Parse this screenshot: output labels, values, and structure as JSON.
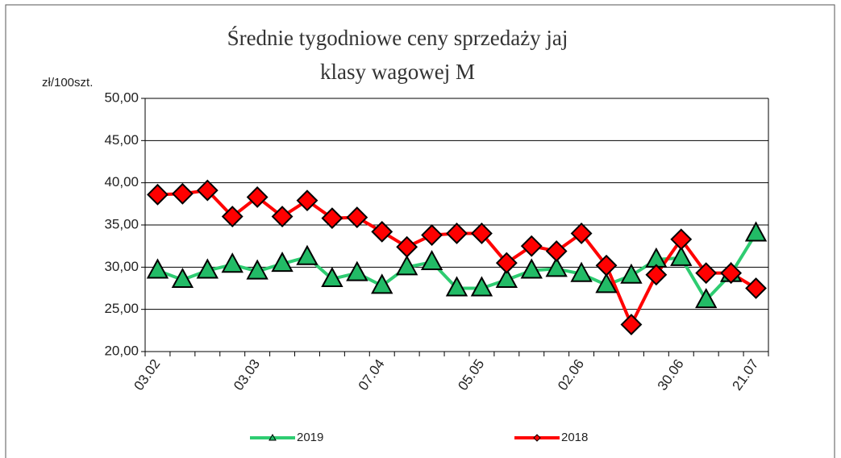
{
  "chart_data": {
    "type": "line",
    "title": [
      "Średnie tygodniowe ceny sprzedaży jaj",
      "klasy wagowej M"
    ],
    "y_label": "zł/100szt.",
    "categories": [
      "03.02",
      null,
      null,
      null,
      "03.03",
      null,
      null,
      null,
      null,
      "07.04",
      null,
      null,
      null,
      "05.05",
      null,
      null,
      null,
      "02.06",
      null,
      null,
      null,
      "30.06",
      null,
      null,
      "21.07"
    ],
    "series": [
      {
        "name": "2019",
        "color": "#2ecc71",
        "marker": "triangle",
        "marker_color": "#22bb66",
        "values": [
          29.6,
          28.5,
          29.6,
          30.3,
          29.5,
          30.4,
          31.2,
          28.6,
          29.3,
          27.8,
          30.0,
          30.6,
          27.5,
          27.5,
          28.5,
          29.6,
          29.8,
          29.2,
          27.9,
          29.0,
          30.9,
          31.1,
          26.1,
          29.2,
          34.0
        ]
      },
      {
        "name": "2018",
        "color": "#ff0000",
        "marker": "diamond",
        "marker_color": "#ff0000",
        "values": [
          38.6,
          38.7,
          39.1,
          36.0,
          38.3,
          36.0,
          37.9,
          35.8,
          35.9,
          34.2,
          32.4,
          33.8,
          34.0,
          34.0,
          30.5,
          32.5,
          31.9,
          34.0,
          30.2,
          23.2,
          29.1,
          33.3,
          29.3,
          29.3,
          27.5
        ]
      }
    ],
    "ylim": [
      20,
      50
    ],
    "yticks": [
      {
        "value": 20,
        "label": "20,00"
      },
      {
        "value": 25,
        "label": "25,00"
      },
      {
        "value": 30,
        "label": "30,00"
      },
      {
        "value": 35,
        "label": "35,00"
      },
      {
        "value": 40,
        "label": "40,00"
      },
      {
        "value": 45,
        "label": "45,00"
      },
      {
        "value": 50,
        "label": "50,00"
      }
    ],
    "grid": true,
    "legend": "bottom"
  }
}
